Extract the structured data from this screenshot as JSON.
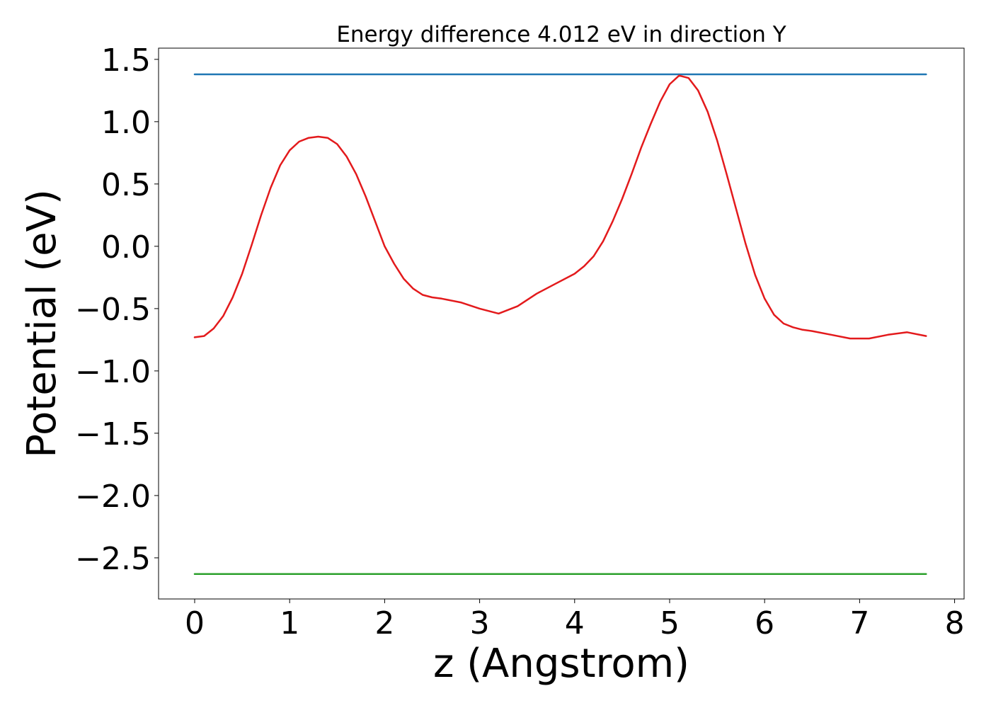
{
  "chart_data": {
    "type": "line",
    "title": "Energy difference 4.012 eV in direction Y",
    "xlabel": "z (Angstrom)",
    "ylabel": "Potential (eV)",
    "xlim": [
      -0.38,
      8.1
    ],
    "ylim": [
      -2.83,
      1.59
    ],
    "xticks": [
      0,
      1,
      2,
      3,
      4,
      5,
      6,
      7,
      8
    ],
    "yticks": [
      1.5,
      1.0,
      0.5,
      0.0,
      -0.5,
      -1.0,
      -1.5,
      -2.0,
      -2.5
    ],
    "xtick_labels": [
      "0",
      "1",
      "2",
      "3",
      "4",
      "5",
      "6",
      "7",
      "8"
    ],
    "ytick_labels": [
      "1.5",
      "1.0",
      "0.5",
      "0.0",
      "−0.5",
      "−1.0",
      "−1.5",
      "−2.0",
      "−2.5"
    ],
    "grid": false,
    "legend": "none",
    "series": [
      {
        "color": "#1f77b4",
        "x": [
          0,
          7.7
        ],
        "y": [
          1.38,
          1.38
        ]
      },
      {
        "color": "#2ca02c",
        "x": [
          0,
          7.7
        ],
        "y": [
          -2.63,
          -2.63
        ]
      },
      {
        "color": "#e31a1c",
        "x": [
          0,
          0.1,
          0.2,
          0.3,
          0.4,
          0.5,
          0.6,
          0.7,
          0.8,
          0.9,
          1.0,
          1.1,
          1.2,
          1.3,
          1.4,
          1.5,
          1.6,
          1.7,
          1.8,
          1.9,
          2.0,
          2.1,
          2.2,
          2.3,
          2.4,
          2.5,
          2.6,
          2.8,
          3.0,
          3.2,
          3.4,
          3.6,
          3.8,
          4.0,
          4.1,
          4.2,
          4.3,
          4.4,
          4.5,
          4.6,
          4.7,
          4.8,
          4.9,
          5.0,
          5.1,
          5.2,
          5.3,
          5.4,
          5.5,
          5.6,
          5.7,
          5.8,
          5.9,
          6.0,
          6.1,
          6.2,
          6.3,
          6.4,
          6.5,
          6.7,
          6.9,
          7.1,
          7.3,
          7.5,
          7.7
        ],
        "y": [
          -0.73,
          -0.72,
          -0.66,
          -0.56,
          -0.41,
          -0.22,
          0.01,
          0.25,
          0.47,
          0.65,
          0.77,
          0.84,
          0.87,
          0.88,
          0.87,
          0.82,
          0.72,
          0.58,
          0.4,
          0.2,
          0.0,
          -0.14,
          -0.26,
          -0.34,
          -0.39,
          -0.41,
          -0.42,
          -0.45,
          -0.5,
          -0.54,
          -0.48,
          -0.38,
          -0.3,
          -0.22,
          -0.16,
          -0.08,
          0.04,
          0.2,
          0.38,
          0.58,
          0.79,
          0.98,
          1.16,
          1.3,
          1.37,
          1.35,
          1.25,
          1.08,
          0.85,
          0.58,
          0.3,
          0.02,
          -0.23,
          -0.42,
          -0.55,
          -0.62,
          -0.65,
          -0.67,
          -0.68,
          -0.71,
          -0.74,
          -0.74,
          -0.71,
          -0.69,
          -0.72
        ]
      }
    ]
  }
}
